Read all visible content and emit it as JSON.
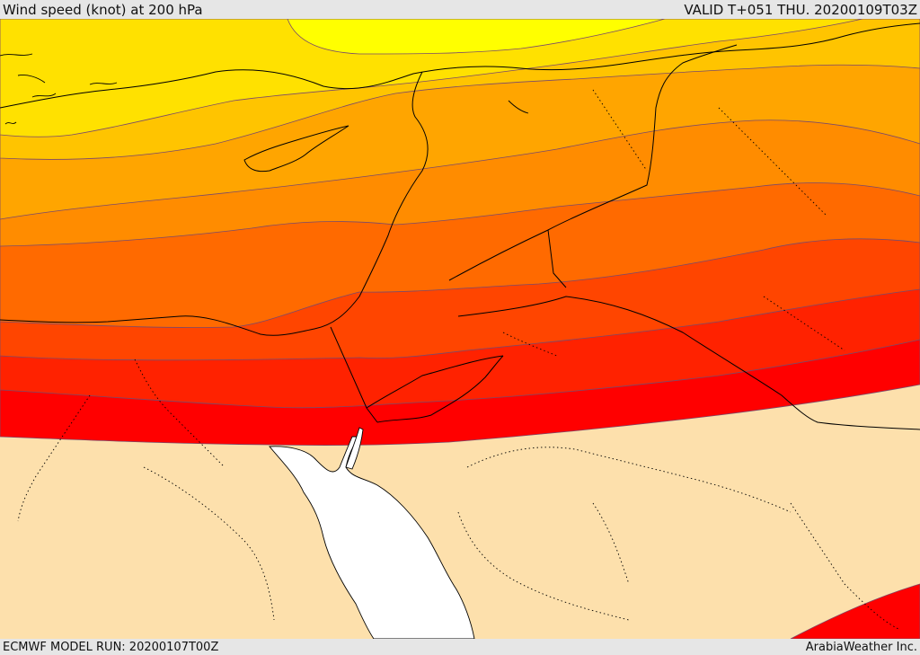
{
  "header": {
    "title": "Wind speed (knot) at 200 hPa",
    "valid_time": "VALID T+051 THU. 20200109T03Z"
  },
  "footer": {
    "model_run": "ECMWF MODEL RUN: 20200107T00Z",
    "credit": "ArabiaWeather Inc."
  },
  "map": {
    "background_color": "#fde0ac",
    "sea_color": "#ffffff",
    "band_colors": [
      "#ffff00",
      "#ffe100",
      "#ffc400",
      "#ffa500",
      "#ff8c00",
      "#ff6a00",
      "#ff4500",
      "#ff2200",
      "#ff0000"
    ],
    "contour_color": "#7a4a6a",
    "boundary_color": "#000000"
  }
}
